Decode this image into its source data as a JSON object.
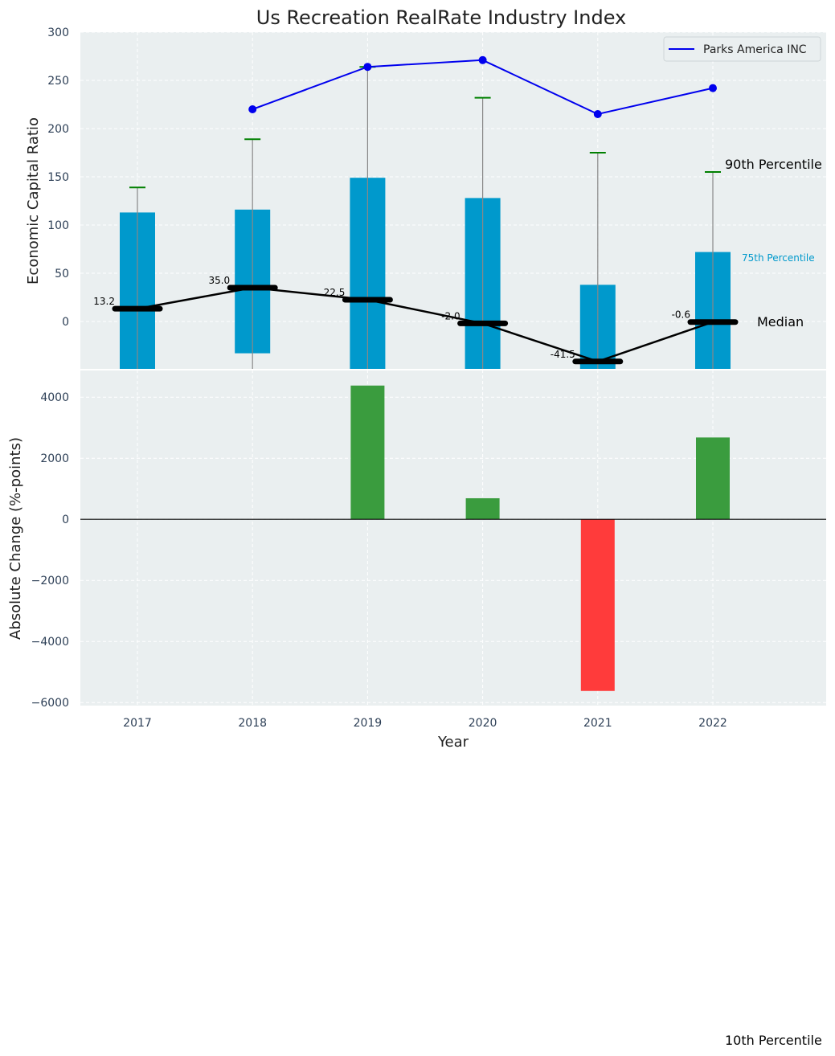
{
  "chart_data": [
    {
      "type": "bar",
      "title": "Us Recreation RealRate Industry Index",
      "ylabel": "Economic Capital Ratio",
      "ylim": [
        -50,
        300
      ],
      "yticks": [
        0,
        50,
        100,
        150,
        200,
        250,
        300
      ],
      "categories": [
        "2017",
        "2018",
        "2019",
        "2020",
        "2021",
        "2022"
      ],
      "percentile_bars": {
        "p25": [
          -50,
          -33,
          -50,
          -50,
          -50,
          -50
        ],
        "p75": [
          113,
          116,
          149,
          128,
          38,
          72
        ],
        "p90": [
          139,
          189,
          264,
          232,
          175,
          155
        ]
      },
      "median": {
        "values": [
          13.2,
          35.0,
          22.5,
          -2.0,
          -41.5,
          -0.6
        ],
        "labels": [
          "13.2",
          "35.0",
          "22.5",
          "-2.0",
          "-41.5",
          "-0.6"
        ]
      },
      "series": [
        {
          "name": "Parks America INC",
          "x": [
            "2018",
            "2019",
            "2020",
            "2021",
            "2022"
          ],
          "values": [
            220,
            264,
            271,
            215,
            242
          ],
          "color": "#0000ee"
        }
      ],
      "annotations": {
        "p90": "90th Percentile",
        "p75": "75th Percentile",
        "median": "Median",
        "p10": "10th Percentile"
      },
      "colors": {
        "bar": "#0099cc",
        "whisker": "#888888",
        "cap": "#008000",
        "median": "#000000",
        "plot_bg": "#eaeff0"
      },
      "grid": true,
      "legend": "top-right"
    },
    {
      "type": "bar",
      "xlabel": "Year",
      "ylabel": "Absolute Change (%-points)",
      "ylim": [
        -6100,
        4900
      ],
      "yticks": [
        -6000,
        -4000,
        -2000,
        0,
        2000,
        4000
      ],
      "categories": [
        "2017",
        "2018",
        "2019",
        "2020",
        "2021",
        "2022"
      ],
      "values": [
        0,
        0,
        4380,
        690,
        -5620,
        2680
      ],
      "colors": {
        "positive": "#3a9c3e",
        "negative": "#ff3b3b",
        "plot_bg": "#eaeff0"
      },
      "grid": true
    }
  ]
}
